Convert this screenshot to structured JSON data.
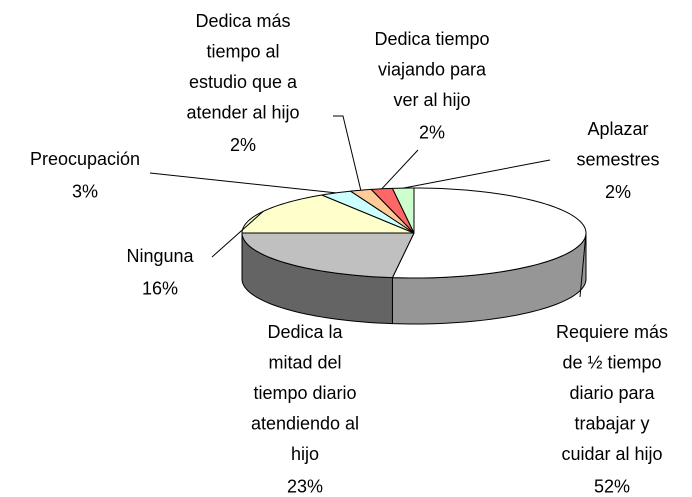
{
  "chart_data": {
    "type": "pie3d",
    "categories": [
      "Requiere más\nde ½ tiempo\ndiario para\ntrabajar y\ncuidar al hijo",
      "Dedica la\nmitad del\ntiempo diario\natendiendo al\nhijo",
      "Ninguna",
      "Preocupación",
      "Dedica más\ntiempo al\nestudio que a\natender al hijo",
      "Dedica tiempo\nviajando para\nver al hijo",
      "Aplazar\nsemestres"
    ],
    "values": [
      52,
      23,
      16,
      3,
      2,
      2,
      2
    ],
    "value_labels": [
      "52%",
      "23%",
      "16%",
      "3%",
      "2%",
      "2%",
      "2%"
    ],
    "colors": [
      "#ffffff",
      "#c0c0c0",
      "#ffffcc",
      "#ccffff",
      "#ffcc99",
      "#ff6666",
      "#ccffcc"
    ],
    "side_colors": [
      "#969696",
      "#646464",
      "#cccc99",
      "#99cccc",
      "#cc9966",
      "#cc3333",
      "#99cc99"
    ]
  }
}
